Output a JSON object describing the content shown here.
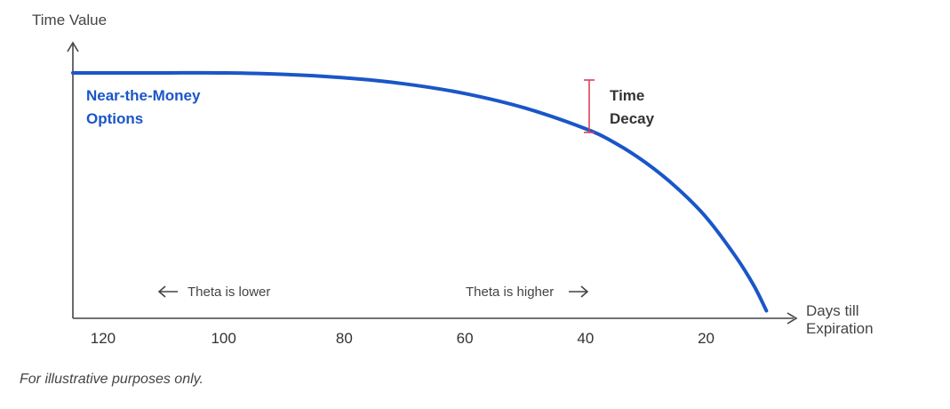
{
  "chart_data": {
    "type": "line",
    "title": "",
    "ylabel": "Time Value",
    "xlabel_lines": [
      "Days till",
      "Expiration"
    ],
    "x_reversed": true,
    "xlim": [
      125,
      8
    ],
    "ylim": [
      0,
      100
    ],
    "x_ticks": [
      120,
      100,
      80,
      60,
      40,
      20
    ],
    "series": [
      {
        "name": "Near-the-Money Options",
        "name_lines": [
          "Near-the-Money",
          "Options"
        ],
        "color": "#1a56c8",
        "x": [
          125,
          120,
          110,
          100,
          90,
          80,
          70,
          60,
          50,
          40,
          35,
          30,
          25,
          20,
          15,
          12,
          10
        ],
        "y": [
          100,
          100,
          100,
          100,
          99.4,
          98,
          95.5,
          91.5,
          85.5,
          77,
          71,
          63,
          53,
          40.5,
          24,
          12,
          2
        ]
      }
    ],
    "annotations": {
      "decay_lines": [
        "Time",
        "Decay"
      ],
      "decay_color": "#d9435a",
      "theta_lower": "Theta is lower",
      "theta_higher": "Theta is higher",
      "arrow_left": "←",
      "arrow_right": "→"
    },
    "grid": false,
    "legend": "none"
  },
  "footnote": "For illustrative purposes only."
}
